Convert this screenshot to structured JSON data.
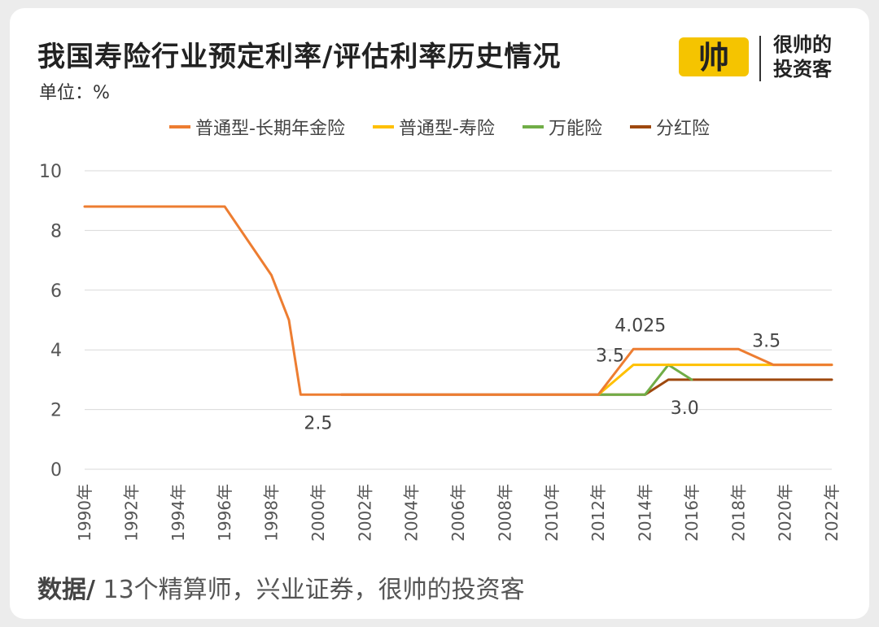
{
  "header": {
    "title": "我国寿险行业预定利率/评估利率历史情况",
    "unit": "单位：%",
    "brand_line1": "很帅的",
    "brand_line2": "投资客",
    "brand_logo_text": "帅"
  },
  "footer": {
    "source_label": "数据/",
    "source_text": " 13个精算师，兴业证券，很帅的投资客"
  },
  "colors": {
    "annuity": "#ed7d31",
    "life": "#ffc000",
    "universal": "#70ad47",
    "participating": "#9e480e",
    "grid": "#d9d9d9",
    "logo": "#f5c400"
  },
  "chart_data": {
    "type": "line",
    "title": "我国寿险行业预定利率/评估利率历史情况",
    "unit": "单位：%",
    "xlabel": "",
    "ylabel": "",
    "ylim": [
      0,
      10
    ],
    "yticks": [
      0,
      2,
      4,
      6,
      8,
      10
    ],
    "xlim": [
      1990,
      2022
    ],
    "xticks": [
      "1990年",
      "1992年",
      "1994年",
      "1996年",
      "1998年",
      "2000年",
      "2002年",
      "2004年",
      "2006年",
      "2008年",
      "2010年",
      "2012年",
      "2014年",
      "2016年",
      "2018年",
      "2020年",
      "2022年"
    ],
    "grid": true,
    "legend_position": "top",
    "series": [
      {
        "name": "普通型-长期年金险",
        "color": "#ed7d31",
        "x": [
          1990,
          1996,
          1998,
          1998.75,
          1999.25,
          2012,
          2013.5,
          2018,
          2019.5,
          2022
        ],
        "y": [
          8.8,
          8.8,
          6.5,
          5.0,
          2.5,
          2.5,
          4.025,
          4.025,
          3.5,
          3.5
        ]
      },
      {
        "name": "普通型-寿险",
        "color": "#ffc000",
        "x": [
          2012,
          2013.5,
          2022
        ],
        "y": [
          2.5,
          3.5,
          3.5
        ]
      },
      {
        "name": "万能险",
        "color": "#70ad47",
        "x": [
          2012,
          2014,
          2015,
          2016
        ],
        "y": [
          2.5,
          2.5,
          3.5,
          3.0
        ]
      },
      {
        "name": "分红险",
        "color": "#9e480e",
        "x": [
          2001,
          2014,
          2015,
          2022
        ],
        "y": [
          2.5,
          2.5,
          3.0,
          3.0
        ]
      }
    ],
    "annotations": [
      {
        "text": "2.5",
        "x": 2000,
        "y": 2.5,
        "pos": "below"
      },
      {
        "text": "4.025",
        "x": 2013.8,
        "y": 4.025,
        "pos": "above"
      },
      {
        "text": "3.5",
        "x": 2012.5,
        "y": 3.5,
        "pos": "left"
      },
      {
        "text": "3.0",
        "x": 2015.7,
        "y": 3.0,
        "pos": "below"
      },
      {
        "text": "3.5",
        "x": 2019.2,
        "y": 3.5,
        "pos": "above"
      }
    ]
  }
}
